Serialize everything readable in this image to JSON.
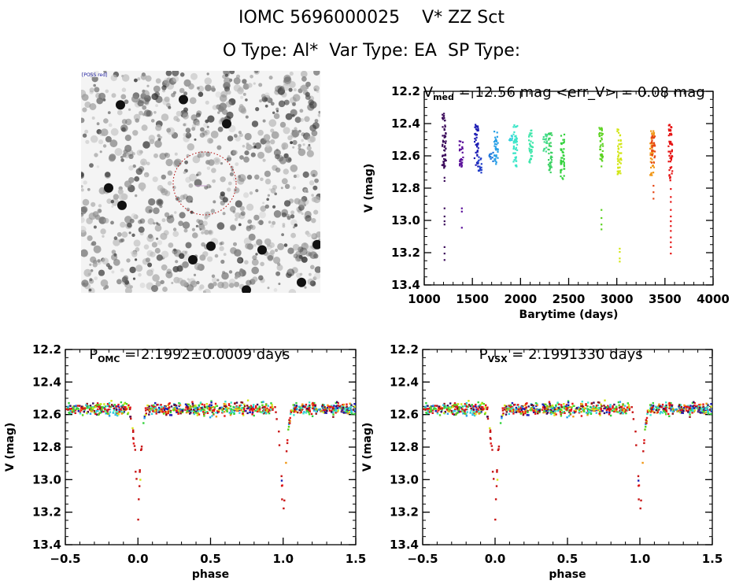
{
  "header": {
    "title": "IOMC 5696000025    V* ZZ Sct",
    "subtitle": "O Type: Al*  Var Type: EA  SP Type:"
  },
  "image_panel": {
    "kind": "sky-cutout",
    "target_circle_color": "#b00000",
    "corner_labels": [
      "[POSS red]",
      "",
      "",
      ""
    ]
  },
  "chart_data": [
    {
      "id": "lightcurve",
      "type": "scatter",
      "title_main": "V",
      "title_sub": "med",
      "title_rest": " = 12.56 mag <err_V> = 0.08 mag",
      "xlabel": "Barytime (days)",
      "ylabel": "V (mag)",
      "xlim": [
        1000,
        4000
      ],
      "ylim": [
        13.4,
        12.2
      ],
      "y_inverted": true,
      "xticks": [
        1000,
        1500,
        2000,
        2500,
        3000,
        3500,
        4000
      ],
      "yticks": [
        12.2,
        12.4,
        12.6,
        12.8,
        13.0,
        13.2,
        13.4
      ],
      "ytick_labels": [
        "12.2",
        "12.4",
        "12.6",
        "12.8",
        "13.0",
        "13.2",
        "13.4"
      ],
      "grid": false,
      "color_map": "rainbow by time",
      "groups": [
        {
          "x": 1210,
          "color": "#3a0a5a",
          "ymin": 12.33,
          "ymax": 12.67,
          "outliers": [
            12.73,
            12.75,
            12.92,
            12.97,
            13.0,
            13.02,
            13.16,
            13.2,
            13.24
          ]
        },
        {
          "x": 1390,
          "color": "#5a0f9a",
          "ymin": 12.5,
          "ymax": 12.67,
          "outliers": [
            12.92,
            12.94,
            13.04
          ]
        },
        {
          "x": 1545,
          "color": "#1c1cb4",
          "ymin": 12.4,
          "ymax": 12.67,
          "outliers": []
        },
        {
          "x": 1580,
          "color": "#1e3cc8",
          "ymin": 12.6,
          "ymax": 12.7,
          "outliers": []
        },
        {
          "x": 1700,
          "color": "#1e78dc",
          "ymin": 12.57,
          "ymax": 12.63,
          "outliers": []
        },
        {
          "x": 1750,
          "color": "#28a0e6",
          "ymin": 12.44,
          "ymax": 12.65,
          "outliers": []
        },
        {
          "x": 1900,
          "color": "#32d2dc",
          "ymin": 12.47,
          "ymax": 12.5,
          "outliers": []
        },
        {
          "x": 1950,
          "color": "#3ce6c8",
          "ymin": 12.4,
          "ymax": 12.67,
          "outliers": []
        },
        {
          "x": 2110,
          "color": "#3ce6aa",
          "ymin": 12.43,
          "ymax": 12.64,
          "outliers": []
        },
        {
          "x": 2260,
          "color": "#46dc8c",
          "ymin": 12.46,
          "ymax": 12.58,
          "outliers": []
        },
        {
          "x": 2310,
          "color": "#3cd264",
          "ymin": 12.45,
          "ymax": 12.7,
          "outliers": []
        },
        {
          "x": 2440,
          "color": "#32d23c",
          "ymin": 12.46,
          "ymax": 12.75,
          "outliers": []
        },
        {
          "x": 2840,
          "color": "#5ad21e",
          "ymin": 12.42,
          "ymax": 12.63,
          "outliers": [
            12.66,
            12.93,
            12.98,
            13.02,
            13.05
          ]
        },
        {
          "x": 3030,
          "color": "#d2e614",
          "ymin": 12.42,
          "ymax": 12.71,
          "outliers": [
            13.17,
            13.19,
            13.23,
            13.25
          ]
        },
        {
          "x": 3370,
          "color": "#f09614",
          "ymin": 12.44,
          "ymax": 12.72,
          "outliers": []
        },
        {
          "x": 3380,
          "color": "#e64614",
          "ymin": 12.47,
          "ymax": 12.64,
          "outliers": [
            12.78,
            12.82,
            12.86
          ]
        },
        {
          "x": 3560,
          "color": "#e61414",
          "ymin": 12.4,
          "ymax": 12.75,
          "outliers": [
            12.8,
            12.85,
            12.88,
            12.93,
            12.97,
            13.0,
            13.03,
            13.06,
            13.1,
            13.13,
            13.16,
            13.2
          ]
        }
      ]
    },
    {
      "id": "phase-omc",
      "type": "scatter",
      "title_main": "P",
      "title_sub": "OMC",
      "title_rest": " = 2.1992±0.0009 days",
      "xlabel": "phase",
      "ylabel": "V (mag)",
      "xlim": [
        -0.5,
        1.5
      ],
      "ylim": [
        13.4,
        12.2
      ],
      "y_inverted": true,
      "xticks": [
        -0.5,
        0.0,
        0.5,
        1.0,
        1.5
      ],
      "xtick_labels": [
        "−0.5",
        "0.0",
        "0.5",
        "1.0",
        "1.5"
      ],
      "yticks": [
        12.2,
        12.4,
        12.6,
        12.8,
        13.0,
        13.2,
        13.4
      ],
      "ytick_labels": [
        "12.2",
        "12.4",
        "12.6",
        "12.8",
        "13.0",
        "13.2",
        "13.4"
      ],
      "grid": false,
      "period_days": 2.1992,
      "period_error_days": 0.0009,
      "baseline_mag": 12.56,
      "baseline_scatter": 0.08,
      "primary_eclipse": {
        "phase": 0.0,
        "depth_mag": 13.26,
        "half_width_phase": 0.065
      }
    },
    {
      "id": "phase-vsx",
      "type": "scatter",
      "title_main": "P",
      "title_sub": "VSX",
      "title_rest": " = 2.1991330 days",
      "xlabel": "phase",
      "ylabel": "V (mag)",
      "xlim": [
        -0.5,
        1.5
      ],
      "ylim": [
        13.4,
        12.2
      ],
      "y_inverted": true,
      "xticks": [
        -0.5,
        0.0,
        0.5,
        1.0,
        1.5
      ],
      "xtick_labels": [
        "−0.5",
        "0.0",
        "0.5",
        "1.0",
        "1.5"
      ],
      "yticks": [
        12.2,
        12.4,
        12.6,
        12.8,
        13.0,
        13.2,
        13.4
      ],
      "ytick_labels": [
        "12.2",
        "12.4",
        "12.6",
        "12.8",
        "13.0",
        "13.2",
        "13.4"
      ],
      "grid": false,
      "period_days": 2.199133,
      "baseline_mag": 12.56,
      "baseline_scatter": 0.08,
      "primary_eclipse": {
        "phase": 0.0,
        "depth_mag": 13.26,
        "half_width_phase": 0.065
      }
    }
  ]
}
